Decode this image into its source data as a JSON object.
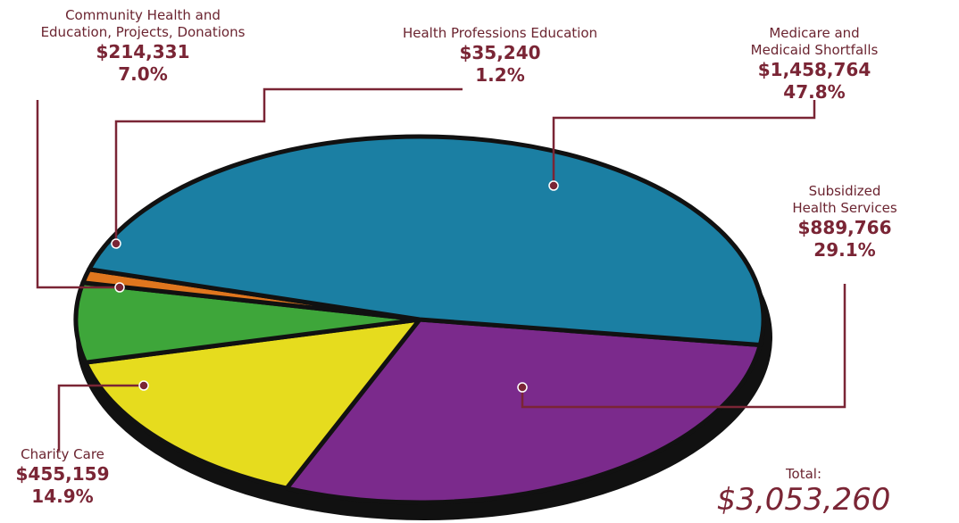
{
  "chart_data": {
    "type": "pie",
    "categories": [
      "Subsidized\nHealth Services",
      "Charity Care",
      "Community Health and\nEducation, Projects, Donations",
      "Health Professions Education",
      "Medicare and Medicaid Shortfalls"
    ],
    "values": [
      29.1,
      14.9,
      7.0,
      1.2,
      47.8
    ],
    "value_labels": [
      "29.1%",
      "14.9%",
      "7.0%",
      "1.2%",
      "47.8%"
    ],
    "amounts": [
      889766,
      455159,
      214331,
      35240,
      1458764
    ],
    "amount_labels": [
      "$889,766",
      "$455,159",
      "$214,331",
      "$35,240",
      "$1,458,764"
    ],
    "colors": [
      "#7b2a8c",
      "#e6dc1e",
      "#3ea63a",
      "#e0761e",
      "#1b7fa3"
    ],
    "total": {
      "label": "Total:",
      "value": 3053260,
      "value_label": "$3,053,260"
    }
  }
}
